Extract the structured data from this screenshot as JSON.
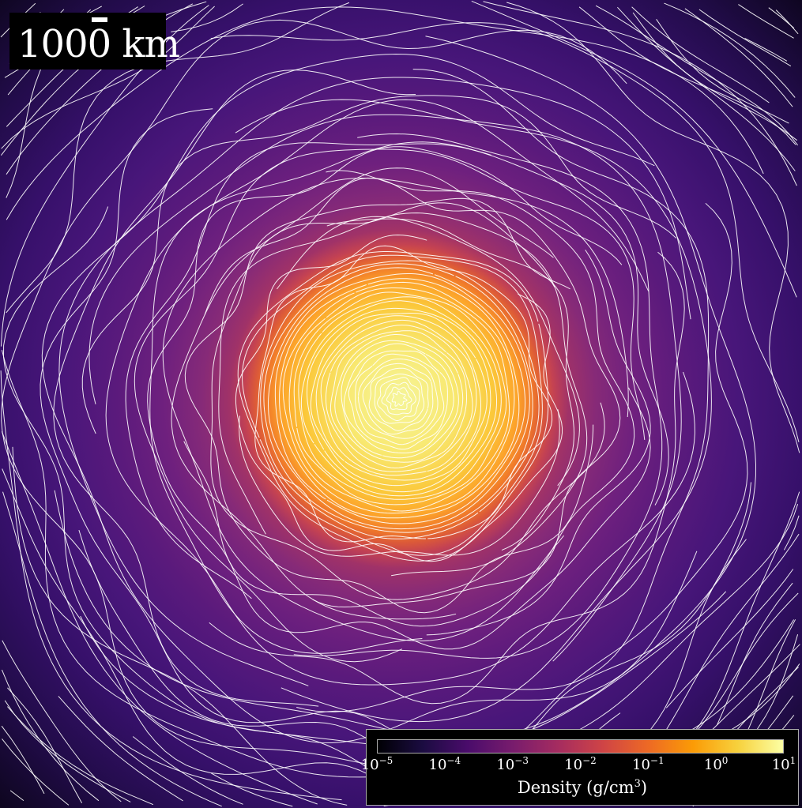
{
  "chart_data": {
    "type": "heatmap",
    "colormap": "inferno",
    "scale": "log",
    "overlay": "velocity streamlines (white)",
    "colorbar": {
      "label": "Density (g/cm",
      "label_exp": "3",
      "label_close": ")",
      "range": [
        1e-05,
        10
      ],
      "ticks": [
        {
          "base": "10",
          "exp": "−5"
        },
        {
          "base": "10",
          "exp": "−4"
        },
        {
          "base": "10",
          "exp": "−3"
        },
        {
          "base": "10",
          "exp": "−2"
        },
        {
          "base": "10",
          "exp": "−1"
        },
        {
          "base": "10",
          "exp": "0"
        },
        {
          "base": "10",
          "exp": "1"
        }
      ]
    },
    "scale_bar": {
      "label": "1000 km"
    }
  }
}
